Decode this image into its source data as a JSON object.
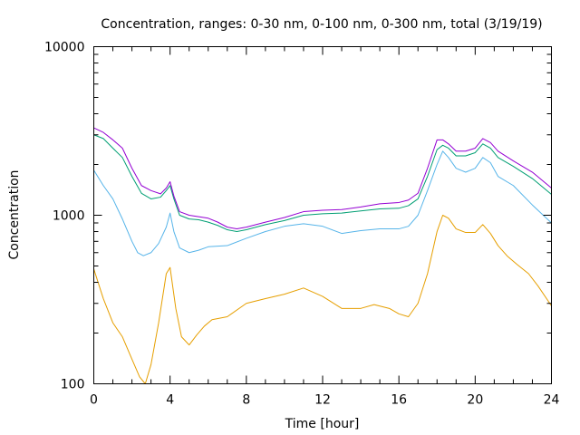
{
  "chart_data": {
    "type": "line",
    "title": "Concentration, ranges: 0-30 nm, 0-100 nm, 0-300 nm, total (3/19/19)",
    "xlabel": "Time [hour]",
    "ylabel": "Concentration",
    "xlim": [
      0,
      24
    ],
    "ylim": [
      100,
      10000
    ],
    "y_scale": "log",
    "grid": false,
    "x_ticks": [
      0,
      4,
      8,
      12,
      16,
      20,
      24
    ],
    "x_tick_labels": [
      "0",
      "4",
      "8",
      "12",
      "16",
      "20",
      "24"
    ],
    "y_ticks": [
      100,
      1000,
      10000
    ],
    "y_tick_labels": [
      "100",
      "1000",
      "10000"
    ],
    "series": [
      {
        "color": "#e69f00",
        "x": [
          0,
          0.5,
          1,
          1.5,
          2,
          2.4,
          2.7,
          3.0,
          3.4,
          3.8,
          4.0,
          4.3,
          4.6,
          5.0,
          5.4,
          5.8,
          6.2,
          7.0,
          8.0,
          9.0,
          10.0,
          11.0,
          12.0,
          13.0,
          14.0,
          14.7,
          15.5,
          16.0,
          16.5,
          17.0,
          17.5,
          18.0,
          18.3,
          18.6,
          19.0,
          19.5,
          20.0,
          20.4,
          20.8,
          21.2,
          21.7,
          22.2,
          22.8,
          23.3,
          24.0
        ],
        "y": [
          480,
          320,
          230,
          190,
          140,
          110,
          100,
          130,
          230,
          450,
          490,
          280,
          190,
          170,
          195,
          220,
          240,
          250,
          300,
          320,
          340,
          370,
          330,
          280,
          280,
          295,
          280,
          260,
          250,
          300,
          450,
          800,
          1000,
          960,
          830,
          790,
          790,
          880,
          780,
          660,
          570,
          510,
          450,
          380,
          290
        ]
      },
      {
        "color": "#56b4e9",
        "x": [
          0,
          0.5,
          1,
          1.5,
          2,
          2.3,
          2.6,
          3.0,
          3.4,
          3.8,
          4.0,
          4.2,
          4.5,
          5.0,
          5.5,
          6.0,
          7.0,
          8.0,
          9.0,
          10.0,
          11.0,
          12.0,
          13.0,
          14.0,
          15.0,
          16.0,
          16.5,
          17.0,
          17.5,
          18.0,
          18.3,
          18.6,
          19.0,
          19.5,
          20.0,
          20.4,
          20.8,
          21.2,
          22.0,
          23.0,
          24.0
        ],
        "y": [
          1850,
          1500,
          1250,
          950,
          700,
          600,
          575,
          600,
          680,
          850,
          1030,
          800,
          640,
          600,
          620,
          650,
          660,
          730,
          800,
          860,
          890,
          860,
          780,
          810,
          830,
          830,
          860,
          1000,
          1400,
          2000,
          2400,
          2200,
          1900,
          1800,
          1900,
          2200,
          2050,
          1700,
          1500,
          1150,
          900
        ]
      },
      {
        "color": "#009e73",
        "x": [
          0,
          0.5,
          1,
          1.5,
          2,
          2.5,
          3.0,
          3.5,
          3.8,
          4.0,
          4.2,
          4.5,
          5.0,
          5.5,
          6.0,
          6.5,
          7.0,
          7.5,
          8.0,
          9.0,
          10.0,
          11.0,
          12.0,
          13.0,
          14.0,
          15.0,
          16.0,
          16.5,
          17.0,
          17.5,
          18.0,
          18.3,
          18.6,
          19.0,
          19.5,
          20.0,
          20.4,
          20.8,
          21.2,
          22.0,
          23.0,
          24.0
        ],
        "y": [
          3000,
          2850,
          2500,
          2200,
          1700,
          1350,
          1250,
          1280,
          1400,
          1500,
          1250,
          1000,
          950,
          940,
          910,
          870,
          820,
          800,
          820,
          880,
          930,
          1000,
          1020,
          1030,
          1060,
          1090,
          1100,
          1140,
          1250,
          1700,
          2450,
          2600,
          2500,
          2250,
          2250,
          2350,
          2650,
          2500,
          2200,
          1950,
          1650,
          1330
        ]
      },
      {
        "color": "#9400d3",
        "x": [
          0,
          0.5,
          1,
          1.5,
          2,
          2.5,
          3.0,
          3.5,
          3.8,
          4.0,
          4.2,
          4.5,
          5.0,
          5.5,
          6.0,
          6.5,
          7.0,
          7.5,
          8.0,
          9.0,
          10.0,
          11.0,
          12.0,
          13.0,
          14.0,
          15.0,
          16.0,
          16.5,
          17.0,
          17.5,
          18.0,
          18.3,
          18.6,
          19.0,
          19.5,
          20.0,
          20.4,
          20.8,
          21.2,
          22.0,
          23.0,
          24.0
        ],
        "y": [
          3300,
          3100,
          2800,
          2500,
          1900,
          1500,
          1400,
          1340,
          1450,
          1580,
          1300,
          1050,
          1000,
          980,
          960,
          910,
          850,
          830,
          850,
          910,
          970,
          1050,
          1070,
          1080,
          1120,
          1170,
          1190,
          1230,
          1350,
          1900,
          2800,
          2800,
          2650,
          2400,
          2400,
          2500,
          2850,
          2700,
          2400,
          2100,
          1800,
          1450
        ]
      }
    ]
  }
}
